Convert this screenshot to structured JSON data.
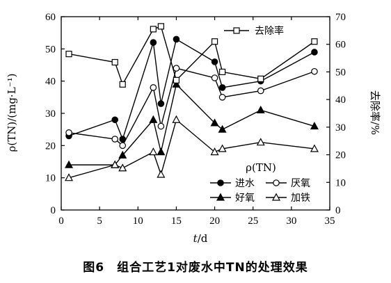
{
  "chart_data": {
    "type": "line",
    "caption": "图6　组合工艺1对废水中TN的处理效果",
    "xlabel_italic": "t",
    "xlabel_unit": "/d",
    "ylabel": "ρ(TN)/(mg·L⁻¹)",
    "y2label": "去除率/%",
    "xlim": [
      0,
      35
    ],
    "ylim": [
      0,
      60
    ],
    "y2lim": [
      0,
      70
    ],
    "xticks": [
      0,
      5,
      10,
      15,
      20,
      25,
      30,
      35
    ],
    "yticks": [
      0,
      10,
      20,
      30,
      40,
      50,
      60
    ],
    "y2ticks": [
      0,
      10,
      20,
      30,
      40,
      50,
      60,
      70
    ],
    "legend_title": "ρ(TN)",
    "series": [
      {
        "name": "进水",
        "axis": "left",
        "marker": "circle",
        "filled": true,
        "x": [
          1,
          7,
          8,
          12,
          13,
          15,
          20,
          21,
          26,
          33
        ],
        "y": [
          23,
          28,
          22,
          52,
          33,
          53,
          46,
          38,
          40,
          49
        ]
      },
      {
        "name": "厌氧",
        "axis": "left",
        "marker": "circle",
        "filled": false,
        "x": [
          1,
          7,
          8,
          12,
          13,
          15,
          20,
          21,
          26,
          33
        ],
        "y": [
          24,
          22,
          20,
          38,
          26,
          44,
          41,
          35,
          37,
          43
        ]
      },
      {
        "name": "好氧",
        "axis": "left",
        "marker": "triangle",
        "filled": true,
        "x": [
          1,
          7,
          8,
          12,
          13,
          15,
          20,
          21,
          26,
          33
        ],
        "y": [
          14,
          14,
          17,
          28,
          18,
          39,
          27,
          25,
          31,
          26
        ]
      },
      {
        "name": "加铁",
        "axis": "left",
        "marker": "triangle",
        "filled": false,
        "x": [
          1,
          7,
          8,
          12,
          13,
          15,
          20,
          21,
          26,
          33
        ],
        "y": [
          10,
          14,
          13,
          18,
          11,
          28,
          18,
          19,
          21,
          19
        ]
      },
      {
        "name": "去除率",
        "axis": "right",
        "marker": "square",
        "filled": false,
        "x": [
          1,
          7,
          8,
          12,
          13,
          15,
          20,
          21,
          26,
          33
        ],
        "y": [
          56.5,
          53.5,
          45.5,
          65.5,
          66.5,
          47,
          61,
          50,
          47.5,
          61
        ]
      }
    ],
    "grid": false
  }
}
